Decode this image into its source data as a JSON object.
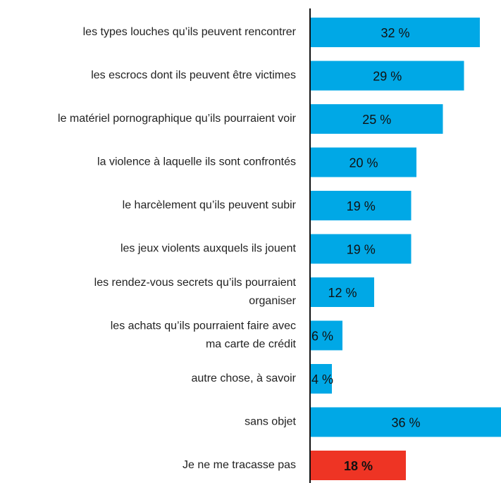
{
  "chart_data": {
    "type": "barh",
    "categories": [
      "les types louches qu’ils peuvent rencontrer",
      "les escrocs dont ils peuvent être victimes",
      "le matériel pornographique qu’ils pourraient voir",
      "la violence à laquelle ils sont confrontés",
      "le harcèlement qu’ils peuvent subir",
      "les jeux violents auxquels ils jouent",
      "les rendez-vous secrets qu’ils pourraient\norganiser",
      "les achats qu’ils pourraient faire avec\nma carte de crédit",
      "autre chose, à savoir",
      "sans objet",
      "Je ne me tracasse pas"
    ],
    "values": [
      32,
      29,
      25,
      20,
      19,
      19,
      12,
      6,
      4,
      36,
      18
    ],
    "value_labels": [
      "32 %",
      "29 %",
      "25 %",
      "20 %",
      "19 %",
      "19 %",
      "12 %",
      "6 %",
      "4 %",
      "36 %",
      "18 %"
    ],
    "colors": [
      "#00a8e6",
      "#00a8e6",
      "#00a8e6",
      "#00a8e6",
      "#00a8e6",
      "#00a8e6",
      "#00a8e6",
      "#00a8e6",
      "#00a8e6",
      "#00a8e6",
      "#ee3424"
    ],
    "xlim": [
      0,
      36
    ]
  }
}
